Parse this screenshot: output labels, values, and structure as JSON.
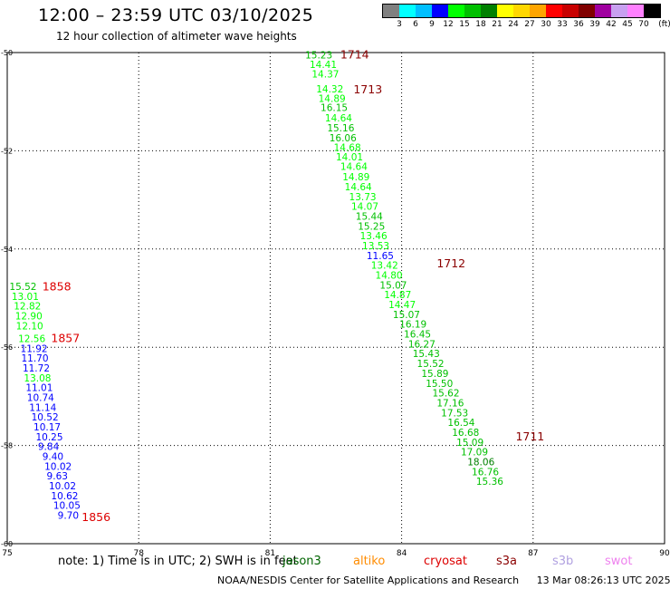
{
  "title": "12:00 – 23:59 UTC 03/10/2025",
  "subtitle": "12 hour collection of altimeter wave heights",
  "colorbar": {
    "colors": [
      "#808080",
      "#00ffff",
      "#00bfff",
      "#0000ff",
      "#00ff00",
      "#00c000",
      "#008000",
      "#ffff00",
      "#ffd700",
      "#ffa500",
      "#ff0000",
      "#c80000",
      "#800000",
      "#a000a0",
      "#c8a0f0",
      "#ff80ff",
      "#000000"
    ],
    "labels": [
      "3",
      "6",
      "9",
      "12",
      "15",
      "18",
      "21",
      "24",
      "27",
      "30",
      "33",
      "36",
      "39",
      "42",
      "45",
      "70"
    ],
    "unit": "(ft)"
  },
  "note": "note:  1) Time is in UTC;  2) SWH is in feet",
  "missions": [
    {
      "name": "jason3",
      "color": "#006400"
    },
    {
      "name": "altiko",
      "color": "#ff8c00"
    },
    {
      "name": "cryosat",
      "color": "#dd0000"
    },
    {
      "name": "s3a",
      "color": "#8b0000"
    },
    {
      "name": "s3b",
      "color": "#b0a0e0"
    },
    {
      "name": "swot",
      "color": "#ee82ee"
    }
  ],
  "footer": {
    "credit": "NOAA/NESDIS Center for Satellite Applications and Research",
    "timestamp": "13 Mar 08:26:13 UTC 2025"
  },
  "chart_data": {
    "type": "scatter",
    "xlim": [
      75,
      90
    ],
    "ylim": [
      -60,
      -50
    ],
    "x_ticks": [
      "75",
      "78",
      "81",
      "84",
      "87",
      "90"
    ],
    "y_ticks": [
      {
        "value": -50,
        "label": "-50"
      },
      {
        "value": -52,
        "label": "-52"
      },
      {
        "value": -54,
        "label": "-54"
      },
      {
        "value": -56,
        "label": "-56"
      },
      {
        "value": -58,
        "label": "-58"
      },
      {
        "value": -60,
        "label": "-60"
      }
    ],
    "grid": true,
    "time_labels": [
      {
        "lon": 82.6,
        "lat": -50.03,
        "text": "1714",
        "color": "#8b0000"
      },
      {
        "lon": 82.9,
        "lat": -50.74,
        "text": "1713",
        "color": "#8b0000"
      },
      {
        "lon": 84.8,
        "lat": -54.28,
        "text": "1712",
        "color": "#8b0000"
      },
      {
        "lon": 86.6,
        "lat": -57.8,
        "text": "1711",
        "color": "#8b0000"
      },
      {
        "lon": 75.8,
        "lat": -54.75,
        "text": "1858",
        "color": "#dd0000"
      },
      {
        "lon": 76.0,
        "lat": -55.8,
        "text": "1857",
        "color": "#dd0000"
      },
      {
        "lon": 76.7,
        "lat": -59.45,
        "text": "1856",
        "color": "#dd0000"
      }
    ],
    "series": [
      {
        "name": "jason3",
        "points": [
          {
            "lon": 81.8,
            "lat": -50.05,
            "swh": "15.23",
            "color": "#00c000"
          },
          {
            "lon": 81.9,
            "lat": -50.24,
            "swh": "14.41",
            "color": "#00ff00"
          },
          {
            "lon": 81.95,
            "lat": -50.43,
            "swh": "14.37",
            "color": "#00ff00"
          },
          {
            "lon": 82.05,
            "lat": -50.74,
            "swh": "14.32",
            "color": "#00ff00"
          },
          {
            "lon": 82.1,
            "lat": -50.93,
            "swh": "14.89",
            "color": "#00ff00"
          },
          {
            "lon": 82.15,
            "lat": -51.12,
            "swh": "16.15",
            "color": "#00c000"
          },
          {
            "lon": 82.25,
            "lat": -51.33,
            "swh": "14.64",
            "color": "#00ff00"
          },
          {
            "lon": 82.3,
            "lat": -51.53,
            "swh": "15.16",
            "color": "#00c000"
          },
          {
            "lon": 82.35,
            "lat": -51.73,
            "swh": "16.06",
            "color": "#00c000"
          },
          {
            "lon": 82.45,
            "lat": -51.93,
            "swh": "14.68",
            "color": "#00ff00"
          },
          {
            "lon": 82.5,
            "lat": -52.12,
            "swh": "14.01",
            "color": "#00ff00"
          },
          {
            "lon": 82.6,
            "lat": -52.32,
            "swh": "14.64",
            "color": "#00ff00"
          },
          {
            "lon": 82.65,
            "lat": -52.53,
            "swh": "14.89",
            "color": "#00ff00"
          },
          {
            "lon": 82.7,
            "lat": -52.73,
            "swh": "14.64",
            "color": "#00ff00"
          },
          {
            "lon": 82.8,
            "lat": -52.93,
            "swh": "13.73",
            "color": "#00ff00"
          },
          {
            "lon": 82.85,
            "lat": -53.13,
            "swh": "14.07",
            "color": "#00ff00"
          },
          {
            "lon": 82.95,
            "lat": -53.33,
            "swh": "15.44",
            "color": "#00c000"
          },
          {
            "lon": 83.0,
            "lat": -53.53,
            "swh": "15.25",
            "color": "#00c000"
          },
          {
            "lon": 83.05,
            "lat": -53.73,
            "swh": "13.46",
            "color": "#00ff00"
          },
          {
            "lon": 83.1,
            "lat": -53.93,
            "swh": "13.53",
            "color": "#00ff00"
          },
          {
            "lon": 83.2,
            "lat": -54.13,
            "swh": "11.65",
            "color": "#0000ff"
          },
          {
            "lon": 83.3,
            "lat": -54.33,
            "swh": "13.42",
            "color": "#00ff00"
          },
          {
            "lon": 83.4,
            "lat": -54.53,
            "swh": "14.80",
            "color": "#00ff00"
          },
          {
            "lon": 83.5,
            "lat": -54.73,
            "swh": "15.07",
            "color": "#00c000"
          },
          {
            "lon": 83.6,
            "lat": -54.93,
            "swh": "14.87",
            "color": "#00ff00"
          },
          {
            "lon": 83.7,
            "lat": -55.13,
            "swh": "14.47",
            "color": "#00ff00"
          },
          {
            "lon": 83.8,
            "lat": -55.33,
            "swh": "15.07",
            "color": "#00c000"
          },
          {
            "lon": 83.95,
            "lat": -55.53,
            "swh": "16.19",
            "color": "#00c000"
          },
          {
            "lon": 84.05,
            "lat": -55.73,
            "swh": "16.45",
            "color": "#00c000"
          },
          {
            "lon": 84.15,
            "lat": -55.93,
            "swh": "16.27",
            "color": "#00c000"
          },
          {
            "lon": 84.25,
            "lat": -56.13,
            "swh": "15.43",
            "color": "#00c000"
          },
          {
            "lon": 84.35,
            "lat": -56.33,
            "swh": "15.52",
            "color": "#00c000"
          },
          {
            "lon": 84.45,
            "lat": -56.53,
            "swh": "15.89",
            "color": "#00c000"
          },
          {
            "lon": 84.55,
            "lat": -56.73,
            "swh": "15.50",
            "color": "#00c000"
          },
          {
            "lon": 84.7,
            "lat": -56.93,
            "swh": "15.62",
            "color": "#00c000"
          },
          {
            "lon": 84.8,
            "lat": -57.13,
            "swh": "17.16",
            "color": "#00c000"
          },
          {
            "lon": 84.9,
            "lat": -57.33,
            "swh": "17.53",
            "color": "#00c000"
          },
          {
            "lon": 85.05,
            "lat": -57.53,
            "swh": "16.54",
            "color": "#00c000"
          },
          {
            "lon": 85.15,
            "lat": -57.73,
            "swh": "16.68",
            "color": "#00c000"
          },
          {
            "lon": 85.25,
            "lat": -57.93,
            "swh": "15.09",
            "color": "#00c000"
          },
          {
            "lon": 85.35,
            "lat": -58.13,
            "swh": "17.09",
            "color": "#00c000"
          },
          {
            "lon": 85.5,
            "lat": -58.33,
            "swh": "18.06",
            "color": "#008000"
          },
          {
            "lon": 85.6,
            "lat": -58.53,
            "swh": "16.76",
            "color": "#00c000"
          },
          {
            "lon": 85.7,
            "lat": -58.73,
            "swh": "15.36",
            "color": "#00c000"
          }
        ]
      },
      {
        "name": "cryosat",
        "points": [
          {
            "lon": 75.05,
            "lat": -54.76,
            "swh": "15.52",
            "color": "#00c000"
          },
          {
            "lon": 75.1,
            "lat": -54.96,
            "swh": "13.01",
            "color": "#00ff00"
          },
          {
            "lon": 75.15,
            "lat": -55.16,
            "swh": "12.82",
            "color": "#00ff00"
          },
          {
            "lon": 75.18,
            "lat": -55.36,
            "swh": "12.90",
            "color": "#00ff00"
          },
          {
            "lon": 75.2,
            "lat": -55.56,
            "swh": "12.10",
            "color": "#00ff00"
          },
          {
            "lon": 75.25,
            "lat": -55.82,
            "swh": "12.56",
            "color": "#00ff00"
          },
          {
            "lon": 75.3,
            "lat": -56.02,
            "swh": "11.92",
            "color": "#0000ff"
          },
          {
            "lon": 75.32,
            "lat": -56.22,
            "swh": "11.70",
            "color": "#0000ff"
          },
          {
            "lon": 75.35,
            "lat": -56.42,
            "swh": "11.72",
            "color": "#0000ff"
          },
          {
            "lon": 75.38,
            "lat": -56.62,
            "swh": "13.08",
            "color": "#00ff00"
          },
          {
            "lon": 75.42,
            "lat": -56.82,
            "swh": "11.01",
            "color": "#0000ff"
          },
          {
            "lon": 75.45,
            "lat": -57.02,
            "swh": "10.74",
            "color": "#0000ff"
          },
          {
            "lon": 75.5,
            "lat": -57.22,
            "swh": "11.14",
            "color": "#0000ff"
          },
          {
            "lon": 75.55,
            "lat": -57.42,
            "swh": "10.52",
            "color": "#0000ff"
          },
          {
            "lon": 75.6,
            "lat": -57.62,
            "swh": "10.17",
            "color": "#0000ff"
          },
          {
            "lon": 75.65,
            "lat": -57.82,
            "swh": "10.25",
            "color": "#0000ff"
          },
          {
            "lon": 75.7,
            "lat": -58.02,
            "swh": "9.84",
            "color": "#0000ff"
          },
          {
            "lon": 75.8,
            "lat": -58.22,
            "swh": "9.40",
            "color": "#0000ff"
          },
          {
            "lon": 75.85,
            "lat": -58.42,
            "swh": "10.02",
            "color": "#0000ff"
          },
          {
            "lon": 75.9,
            "lat": -58.62,
            "swh": "9.63",
            "color": "#0000ff"
          },
          {
            "lon": 75.95,
            "lat": -58.82,
            "swh": "10.02",
            "color": "#0000ff"
          },
          {
            "lon": 76.0,
            "lat": -59.02,
            "swh": "10.62",
            "color": "#0000ff"
          },
          {
            "lon": 76.05,
            "lat": -59.22,
            "swh": "10.05",
            "color": "#0000ff"
          },
          {
            "lon": 76.15,
            "lat": -59.42,
            "swh": "9.70",
            "color": "#0000ff"
          }
        ]
      }
    ]
  }
}
